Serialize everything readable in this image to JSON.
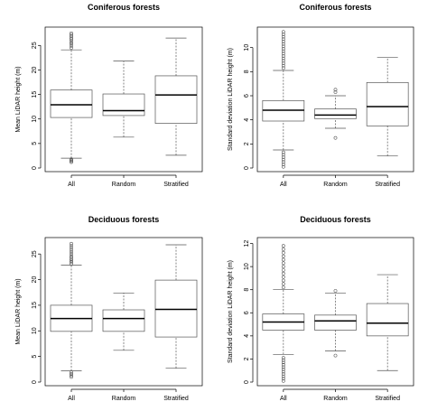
{
  "chart_data": [
    {
      "type": "box",
      "title": "Coniferous forests",
      "ylabel": "Mean LiDAR height (m)",
      "categories": [
        "All",
        "Random",
        "Stratified"
      ],
      "ylim": [
        0,
        28
      ],
      "yticks": [
        0,
        5,
        10,
        15,
        20,
        25
      ],
      "boxes": [
        {
          "name": "All",
          "whisker_low": 2.0,
          "q1": 10.3,
          "median": 12.9,
          "q3": 15.9,
          "whisker_high": 24.1,
          "outliers": [
            1.2,
            1.4,
            1.6,
            1.8,
            24.5,
            24.9,
            25.3,
            25.6,
            26.0,
            26.3,
            26.6,
            26.9,
            27.2,
            27.5
          ]
        },
        {
          "name": "Random",
          "whisker_low": 6.3,
          "q1": 10.7,
          "median": 11.7,
          "q3": 15.1,
          "whisker_high": 21.8,
          "outliers": []
        },
        {
          "name": "Stratified",
          "whisker_low": 2.6,
          "q1": 9.1,
          "median": 14.9,
          "q3": 18.8,
          "whisker_high": 26.5,
          "outliers": []
        }
      ]
    },
    {
      "type": "box",
      "title": "Coniferous forests",
      "ylabel": "Standard deviation LiDAR height (m)",
      "categories": [
        "All",
        "Random",
        "Stratified"
      ],
      "ylim": [
        0,
        11.4
      ],
      "yticks": [
        0,
        2,
        4,
        6,
        8,
        10
      ],
      "boxes": [
        {
          "name": "All",
          "whisker_low": 1.5,
          "q1": 3.9,
          "median": 4.8,
          "q3": 5.6,
          "whisker_high": 8.1,
          "outliers": [
            0.1,
            0.3,
            0.5,
            0.7,
            0.9,
            1.1,
            1.3,
            8.3,
            8.5,
            8.7,
            8.9,
            9.1,
            9.3,
            9.5,
            9.7,
            9.9,
            10.1,
            10.3,
            10.5,
            10.7,
            10.9,
            11.1,
            11.3
          ]
        },
        {
          "name": "Random",
          "whisker_low": 3.3,
          "q1": 4.1,
          "median": 4.4,
          "q3": 4.9,
          "whisker_high": 6.0,
          "outliers": [
            2.5,
            6.3,
            6.5
          ]
        },
        {
          "name": "Stratified",
          "whisker_low": 1.0,
          "q1": 3.5,
          "median": 5.1,
          "q3": 7.1,
          "whisker_high": 9.2,
          "outliers": []
        }
      ]
    },
    {
      "type": "box",
      "title": "Deciduous forests",
      "ylabel": "Mean LiDAR height (m)",
      "categories": [
        "All",
        "Random",
        "Stratified"
      ],
      "ylim": [
        0,
        27.5
      ],
      "yticks": [
        0,
        5,
        10,
        15,
        20,
        25
      ],
      "boxes": [
        {
          "name": "All",
          "whisker_low": 2.2,
          "q1": 9.9,
          "median": 12.4,
          "q3": 15.0,
          "whisker_high": 22.8,
          "outliers": [
            1.0,
            1.3,
            1.6,
            1.9,
            23.1,
            23.4,
            23.7,
            24.0,
            24.3,
            24.6,
            25.0,
            25.4,
            25.8,
            26.2,
            26.6,
            27.0
          ]
        },
        {
          "name": "Random",
          "whisker_low": 6.2,
          "q1": 9.9,
          "median": 12.4,
          "q3": 14.1,
          "whisker_high": 17.4,
          "outliers": []
        },
        {
          "name": "Stratified",
          "whisker_low": 2.7,
          "q1": 8.8,
          "median": 14.2,
          "q3": 19.9,
          "whisker_high": 26.8,
          "outliers": []
        }
      ]
    },
    {
      "type": "box",
      "title": "Deciduous forests",
      "ylabel": "Standard deviation LiDAR height (m)",
      "categories": [
        "All",
        "Random",
        "Stratified"
      ],
      "ylim": [
        0,
        12.2
      ],
      "yticks": [
        0,
        2,
        4,
        6,
        8,
        10,
        12
      ],
      "boxes": [
        {
          "name": "All",
          "whisker_low": 2.4,
          "q1": 4.5,
          "median": 5.2,
          "q3": 5.9,
          "whisker_high": 8.0,
          "outliers": [
            0.1,
            0.3,
            0.5,
            0.7,
            0.9,
            1.1,
            1.3,
            1.5,
            1.7,
            1.9,
            2.1,
            8.2,
            8.5,
            8.8,
            9.1,
            9.4,
            9.7,
            10.0,
            10.3,
            10.6,
            10.9,
            11.2,
            11.5,
            11.8
          ]
        },
        {
          "name": "Random",
          "whisker_low": 2.7,
          "q1": 4.5,
          "median": 5.3,
          "q3": 5.8,
          "whisker_high": 7.7,
          "outliers": [
            2.3,
            7.9
          ]
        },
        {
          "name": "Stratified",
          "whisker_low": 1.0,
          "q1": 4.0,
          "median": 5.1,
          "q3": 6.8,
          "whisker_high": 9.3,
          "outliers": []
        }
      ]
    }
  ]
}
